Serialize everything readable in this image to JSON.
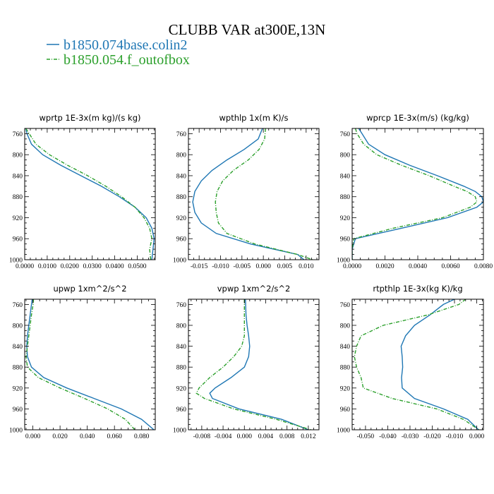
{
  "figure": {
    "title": "CLUBB VAR at300E,13N"
  },
  "legend": [
    {
      "label": "b1850.074base.colin2",
      "color": "#1f77b4",
      "dash": false
    },
    {
      "label": "b1850.054.f_outofbox",
      "color": "#2ca02c",
      "dash": true
    }
  ],
  "chart_data": [
    {
      "type": "line",
      "title": "wprtp  1E-3x(m kg)/(s kg)",
      "xlim": [
        0,
        0.058
      ],
      "ylim": [
        1000,
        750
      ],
      "xticks": [
        0,
        0.01,
        0.02,
        0.03,
        0.04,
        0.05
      ],
      "xtick_labels": [
        "0.0000",
        "0.0100",
        "0.0200",
        "0.0300",
        "0.0400",
        "0.0500"
      ],
      "yticks": [
        760,
        800,
        840,
        880,
        920,
        960,
        1000
      ],
      "series": [
        {
          "name": "b1850.074base.colin2",
          "y": [
            750,
            760,
            780,
            800,
            820,
            840,
            860,
            880,
            900,
            920,
            940,
            960,
            980,
            1000
          ],
          "x": [
            0.0005,
            0.001,
            0.003,
            0.008,
            0.016,
            0.025,
            0.034,
            0.042,
            0.049,
            0.054,
            0.0565,
            0.0575,
            0.057,
            0.0565
          ]
        },
        {
          "name": "b1850.054.f_outofbox",
          "y": [
            750,
            760,
            780,
            800,
            820,
            840,
            860,
            880,
            900,
            920,
            940,
            960,
            980,
            1000
          ],
          "x": [
            0.0005,
            0.002,
            0.005,
            0.011,
            0.019,
            0.028,
            0.036,
            0.043,
            0.049,
            0.053,
            0.0555,
            0.0565,
            0.0555,
            0.056
          ]
        }
      ]
    },
    {
      "type": "line",
      "title": "wpthlp  1x(m K)/s",
      "xlim": [
        -0.0175,
        0.013
      ],
      "ylim": [
        1000,
        750
      ],
      "xticks": [
        -0.015,
        -0.01,
        -0.005,
        0,
        0.005,
        0.01
      ],
      "xtick_labels": [
        "-0.015",
        "-0.010",
        "-0.005",
        "0.000",
        "0.005",
        "0.010"
      ],
      "yticks": [
        760,
        800,
        840,
        880,
        920,
        960,
        1000
      ],
      "series": [
        {
          "name": "b1850.074base.colin2",
          "y": [
            750,
            770,
            790,
            810,
            830,
            850,
            870,
            890,
            910,
            930,
            950,
            970,
            990,
            1000
          ],
          "x": [
            -0.0002,
            -0.0012,
            -0.0045,
            -0.0085,
            -0.012,
            -0.0145,
            -0.016,
            -0.0165,
            -0.016,
            -0.0145,
            -0.011,
            -0.003,
            0.008,
            0.0095
          ]
        },
        {
          "name": "b1850.054.f_outofbox",
          "y": [
            750,
            770,
            790,
            810,
            830,
            850,
            870,
            890,
            910,
            930,
            950,
            970,
            990,
            1000
          ],
          "x": [
            0.0005,
            0.0003,
            -0.001,
            -0.0035,
            -0.007,
            -0.0095,
            -0.0108,
            -0.0112,
            -0.011,
            -0.0105,
            -0.0085,
            -0.002,
            0.008,
            0.0115
          ]
        }
      ]
    },
    {
      "type": "line",
      "title": "wprcp  1E-3x(m/s) (kg/kg)",
      "xlim": [
        0,
        0.008
      ],
      "ylim": [
        1000,
        750
      ],
      "xticks": [
        0,
        0.002,
        0.004,
        0.006,
        0.008
      ],
      "xtick_labels": [
        "0.0000",
        "0.0020",
        "0.0040",
        "0.0060",
        "0.0080"
      ],
      "yticks": [
        760,
        800,
        840,
        880,
        920,
        960,
        1000
      ],
      "series": [
        {
          "name": "b1850.074base.colin2",
          "y": [
            750,
            760,
            780,
            800,
            820,
            840,
            860,
            870,
            880,
            890,
            900,
            920,
            940,
            960,
            980,
            1000
          ],
          "x": [
            0.0004,
            0.0006,
            0.001,
            0.002,
            0.0035,
            0.0052,
            0.0068,
            0.0075,
            0.0079,
            0.008,
            0.0076,
            0.0058,
            0.003,
            0.0002,
            0.0,
            0.0
          ]
        },
        {
          "name": "b1850.054.f_outofbox",
          "y": [
            750,
            760,
            780,
            800,
            820,
            840,
            860,
            870,
            880,
            890,
            900,
            920,
            940,
            960,
            980,
            1000
          ],
          "x": [
            0.0002,
            0.0003,
            0.0007,
            0.0015,
            0.003,
            0.0047,
            0.0062,
            0.007,
            0.0075,
            0.0076,
            0.0072,
            0.0055,
            0.0025,
            0.0001,
            0.0,
            0.0
          ]
        }
      ]
    },
    {
      "type": "line",
      "title": "upwp  1xm^2/s^2",
      "xlim": [
        -0.006,
        0.09
      ],
      "ylim": [
        1000,
        750
      ],
      "xticks": [
        0,
        0.02,
        0.04,
        0.06,
        0.08
      ],
      "xtick_labels": [
        "0.000",
        "0.020",
        "0.040",
        "0.060",
        "0.080"
      ],
      "yticks": [
        760,
        800,
        840,
        880,
        920,
        960,
        1000
      ],
      "series": [
        {
          "name": "b1850.074base.colin2",
          "y": [
            750,
            760,
            780,
            800,
            820,
            840,
            860,
            880,
            900,
            920,
            940,
            960,
            980,
            1000
          ],
          "x": [
            -0.0005,
            -0.001,
            -0.002,
            -0.003,
            -0.004,
            -0.0045,
            -0.004,
            -0.001,
            0.008,
            0.025,
            0.045,
            0.065,
            0.08,
            0.089
          ]
        },
        {
          "name": "b1850.054.f_outofbox",
          "y": [
            750,
            760,
            780,
            800,
            820,
            840,
            860,
            880,
            900,
            920,
            940,
            960,
            980,
            1000
          ],
          "x": [
            0.0005,
            0.0002,
            -0.001,
            -0.002,
            -0.003,
            -0.004,
            -0.005,
            -0.004,
            0.004,
            0.02,
            0.038,
            0.055,
            0.068,
            0.075
          ]
        }
      ]
    },
    {
      "type": "line",
      "title": "vpwp  1xm^2/s^2",
      "xlim": [
        -0.0105,
        0.014
      ],
      "ylim": [
        1000,
        750
      ],
      "xticks": [
        -0.008,
        -0.004,
        0,
        0.004,
        0.008,
        0.012
      ],
      "xtick_labels": [
        "-0.008",
        "-0.004",
        "0.000",
        "0.004",
        "0.008",
        "0.012"
      ],
      "yticks": [
        760,
        800,
        840,
        880,
        920,
        960,
        1000
      ],
      "series": [
        {
          "name": "b1850.074base.colin2",
          "y": [
            750,
            780,
            800,
            820,
            840,
            860,
            880,
            900,
            920,
            930,
            940,
            960,
            980,
            1000
          ],
          "x": [
            0.0002,
            0.0003,
            0.0005,
            0.0008,
            0.001,
            0.0008,
            0.0,
            -0.0025,
            -0.0055,
            -0.0065,
            -0.006,
            -0.001,
            0.007,
            0.012
          ]
        },
        {
          "name": "b1850.054.f_outofbox",
          "y": [
            750,
            780,
            800,
            820,
            840,
            860,
            880,
            900,
            920,
            930,
            940,
            960,
            980,
            1000
          ],
          "x": [
            0.0,
            0.0,
            0.0,
            0.0,
            -0.0005,
            -0.002,
            -0.004,
            -0.0065,
            -0.0085,
            -0.009,
            -0.0075,
            -0.002,
            0.006,
            0.0125
          ]
        }
      ]
    },
    {
      "type": "line",
      "title": "rtpthlp  1E-3x(kg K)/kg",
      "xlim": [
        -0.056,
        0.003
      ],
      "ylim": [
        1000,
        750
      ],
      "xticks": [
        -0.05,
        -0.04,
        -0.03,
        -0.02,
        -0.01,
        0
      ],
      "xtick_labels": [
        "-0.050",
        "-0.040",
        "-0.030",
        "-0.020",
        "-0.010",
        "0.000"
      ],
      "yticks": [
        760,
        800,
        840,
        880,
        920,
        960,
        1000
      ],
      "series": [
        {
          "name": "b1850.074base.colin2",
          "y": [
            750,
            760,
            780,
            800,
            820,
            840,
            860,
            880,
            900,
            920,
            940,
            960,
            980,
            1000
          ],
          "x": [
            -0.01,
            -0.015,
            -0.021,
            -0.028,
            -0.032,
            -0.034,
            -0.0335,
            -0.0333,
            -0.0338,
            -0.0335,
            -0.028,
            -0.015,
            -0.004,
            0.0008
          ]
        },
        {
          "name": "b1850.054.f_outofbox",
          "y": [
            750,
            760,
            780,
            800,
            820,
            840,
            860,
            880,
            900,
            920,
            940,
            960,
            980,
            1000
          ],
          "x": [
            -0.005,
            -0.008,
            -0.022,
            -0.042,
            -0.052,
            -0.054,
            -0.055,
            -0.054,
            -0.052,
            -0.051,
            -0.038,
            -0.018,
            -0.006,
            0.001
          ]
        }
      ]
    }
  ]
}
